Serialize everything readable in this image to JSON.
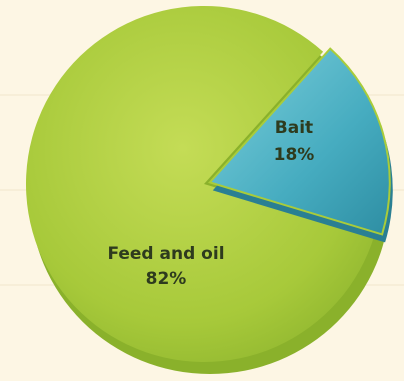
{
  "chart_data": {
    "type": "pie",
    "title": "",
    "slices": [
      {
        "label": "Bait",
        "percent_label": "18%",
        "value": 18,
        "color": "#4fb8c9"
      },
      {
        "label": "Feed and oil",
        "percent_label": "82%",
        "value": 82,
        "color": "#a9cc3a"
      }
    ],
    "legend": "none",
    "start_angle_deg": 18
  }
}
